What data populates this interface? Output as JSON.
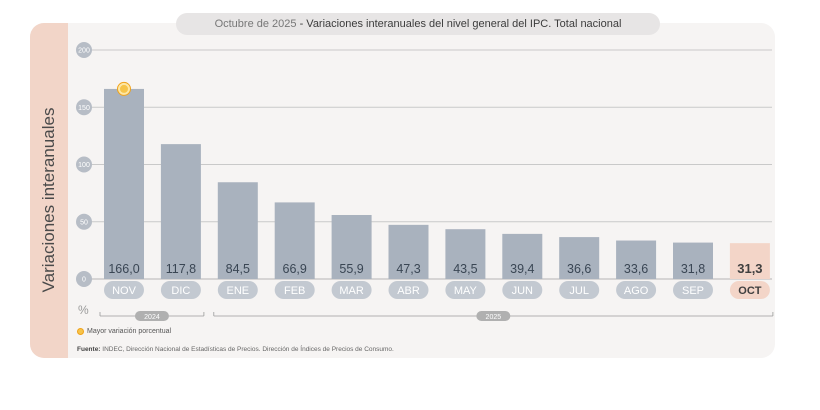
{
  "title": {
    "prefix": "Octubre de 2025",
    "separator": " - ",
    "main": "Variaciones interanuales del nivel general del IPC. Total nacional"
  },
  "y_axis_label": "Variaciones interanuales",
  "unit_label": "%",
  "legend": {
    "label": "Mayor variación porcentual"
  },
  "source": {
    "label": "Fuente:",
    "text": "INDEC, Dirección Nacional de Estadísticas de Precios. Dirección de Índices de Precios de Consumo."
  },
  "colors": {
    "bar": "#a9b2be",
    "bar_highlight": "#f3d5c8",
    "pill": "#c3c9d1",
    "pill_highlight": "#f3d5c8",
    "marker": "#f6c44a",
    "side_panel": "#f2d5c8"
  },
  "chart_data": {
    "type": "bar",
    "categories": [
      "NOV",
      "DIC",
      "ENE",
      "FEB",
      "MAR",
      "ABR",
      "MAY",
      "JUN",
      "JUL",
      "AGO",
      "SEP",
      "OCT"
    ],
    "values": [
      166.0,
      117.8,
      84.5,
      66.9,
      55.9,
      47.3,
      43.5,
      39.4,
      36.6,
      33.6,
      31.8,
      31.3
    ],
    "value_labels": [
      "166,0",
      "117,8",
      "84,5",
      "66,9",
      "55,9",
      "47,3",
      "43,5",
      "39,4",
      "36,6",
      "33,6",
      "31,8",
      "31,3"
    ],
    "highlight_index": 11,
    "max_marker_index": 0,
    "ylim": [
      0,
      200
    ],
    "yticks": [
      0,
      50,
      100,
      150,
      200
    ],
    "grid": true,
    "year_groups": [
      {
        "label": "2024",
        "start": 0,
        "end": 1
      },
      {
        "label": "2025",
        "start": 2,
        "end": 11
      }
    ]
  }
}
